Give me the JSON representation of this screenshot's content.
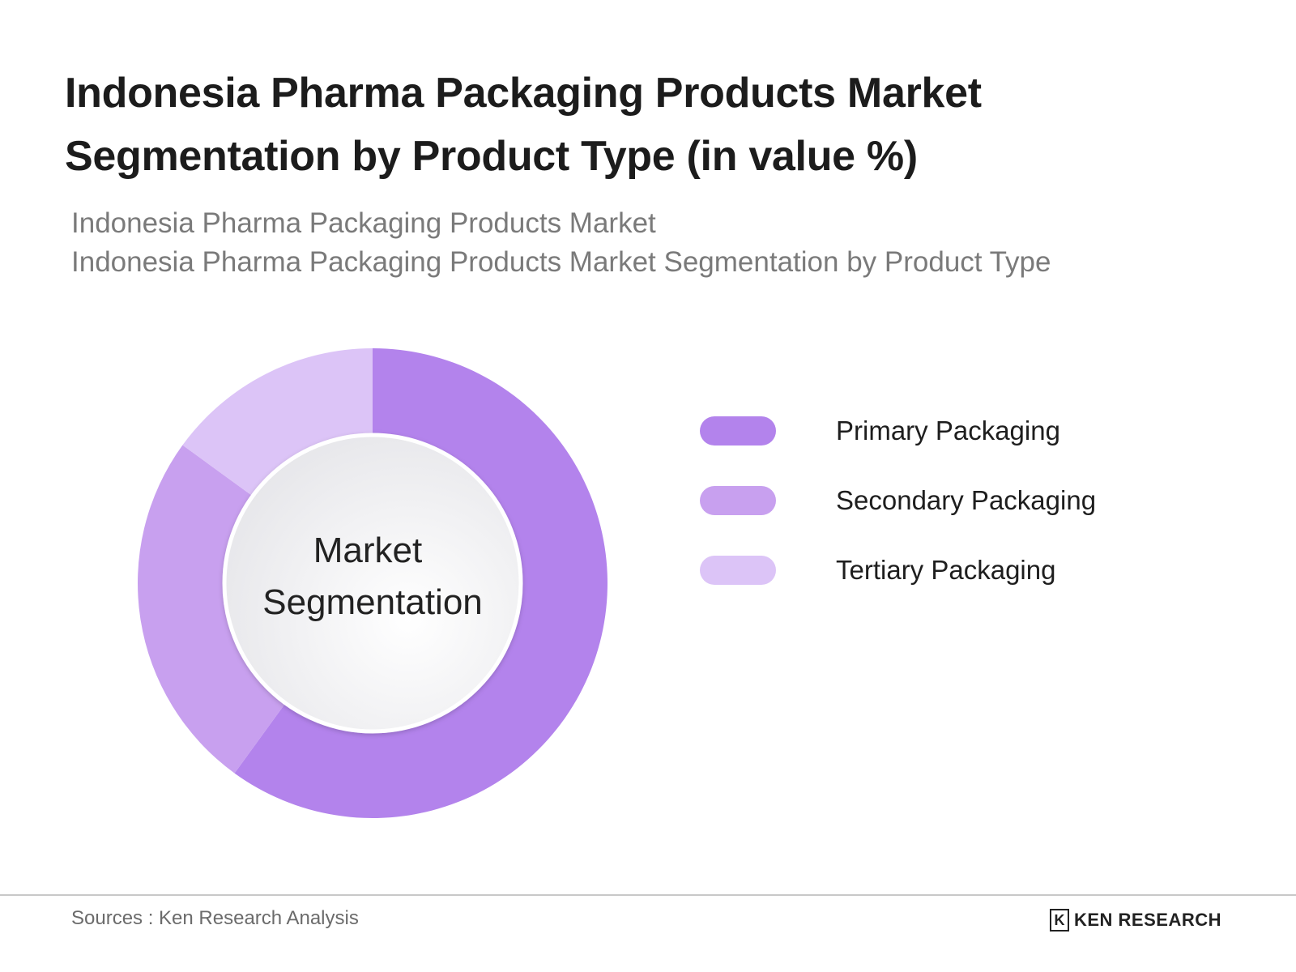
{
  "header": {
    "title": "Indonesia Pharma Packaging Products Market Segmentation by Product Type (in value %)",
    "subtitle_line1": "Indonesia Pharma Packaging Products Market",
    "subtitle_line2": "Indonesia Pharma Packaging Products Market Segmentation by Product Type"
  },
  "chart_data": {
    "type": "pie",
    "variant": "donut",
    "center_label_line1": "Market",
    "center_label_line2": "Segmentation",
    "categories": [
      "Primary Packaging",
      "Secondary Packaging",
      "Tertiary Packaging"
    ],
    "values": [
      60,
      25,
      15
    ],
    "colors": [
      "#b383ec",
      "#c8a0ef",
      "#dcc4f7"
    ],
    "legend_position": "right"
  },
  "footer": {
    "source": "Sources : Ken Research Analysis",
    "brand_mark": "K",
    "brand_name": "KEN RESEARCH"
  }
}
